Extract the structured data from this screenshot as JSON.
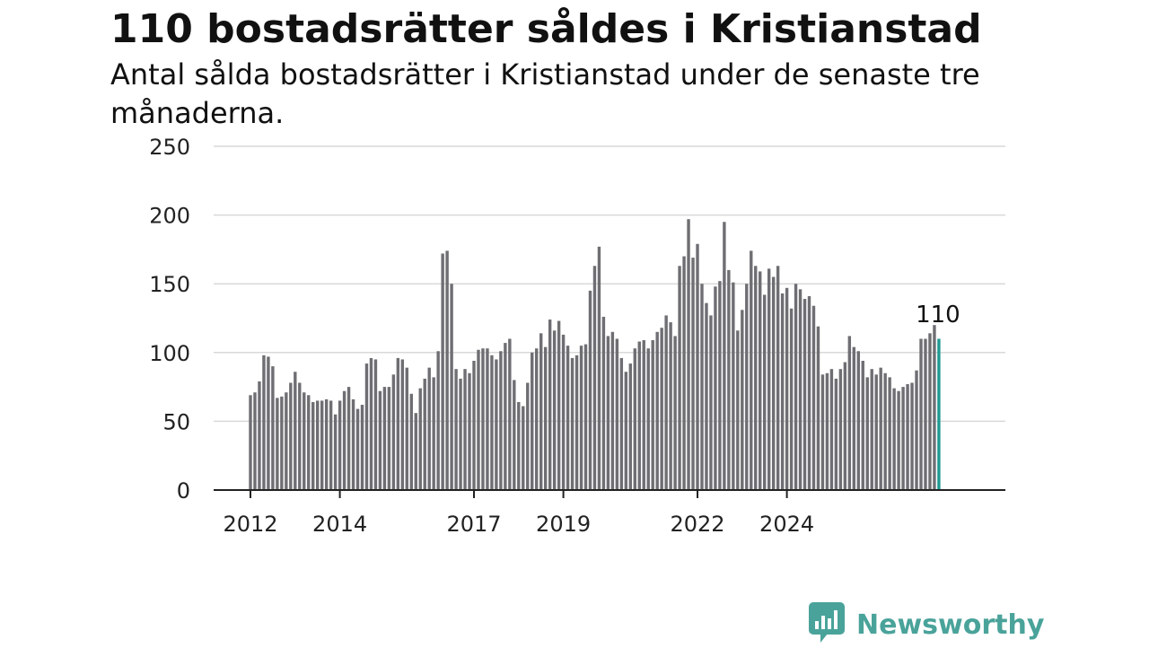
{
  "title": "110 bostadsrätter såldes i Kristianstad",
  "subtitle": "Antal sålda bostadsrätter i Kristianstad under de senaste tre månaderna.",
  "brand": {
    "name": "Newsworthy",
    "color": "#4aa39a",
    "icon": "chart-bubble-icon"
  },
  "colors": {
    "bar": "#6e6e73",
    "highlight": "#1f9a92",
    "grid": "#d9d9d9",
    "axis": "#222222"
  },
  "chart_data": {
    "type": "bar",
    "ylim": [
      0,
      250
    ],
    "yticks": [
      0,
      50,
      100,
      150,
      200,
      250
    ],
    "xtick_labels": [
      "2012",
      "2014",
      "2017",
      "2019",
      "2022",
      "2024"
    ],
    "xtick_month_index": [
      0,
      20,
      50,
      70,
      100,
      120
    ],
    "grid": true,
    "highlight_label": "110",
    "values": [
      69,
      71,
      79,
      98,
      97,
      90,
      67,
      68,
      71,
      78,
      86,
      78,
      71,
      69,
      64,
      65,
      65,
      66,
      65,
      55,
      65,
      72,
      75,
      66,
      59,
      62,
      92,
      96,
      95,
      72,
      75,
      75,
      84,
      96,
      95,
      89,
      70,
      56,
      74,
      81,
      89,
      82,
      101,
      172,
      174,
      150,
      88,
      81,
      88,
      85,
      94,
      102,
      103,
      103,
      98,
      95,
      101,
      107,
      110,
      80,
      64,
      61,
      78,
      100,
      103,
      114,
      104,
      124,
      116,
      123,
      113,
      105,
      96,
      98,
      105,
      106,
      145,
      163,
      177,
      126,
      112,
      115,
      110,
      96,
      86,
      92,
      103,
      108,
      109,
      103,
      109,
      115,
      118,
      127,
      122,
      112,
      163,
      170,
      197,
      169,
      179,
      150,
      136,
      127,
      148,
      152,
      195,
      160,
      151,
      116,
      131,
      150,
      174,
      163,
      159,
      142,
      161,
      155,
      163,
      143,
      147,
      132,
      150,
      146,
      139,
      141,
      134,
      119,
      84,
      85,
      88,
      81,
      88,
      93,
      112,
      104,
      101,
      94,
      82,
      88,
      84,
      89,
      85,
      82,
      74,
      72,
      75,
      77,
      78,
      87,
      110,
      110,
      114,
      120,
      110
    ]
  }
}
